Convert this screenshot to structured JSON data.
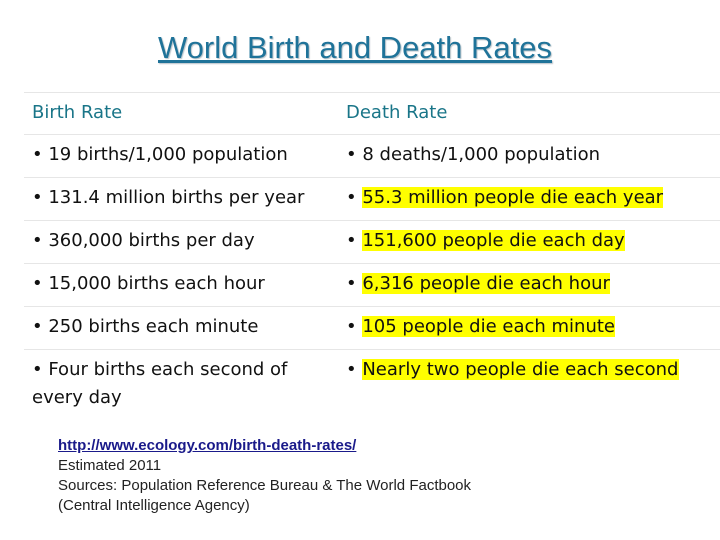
{
  "title": "World Birth and Death Rates",
  "table": {
    "headers": [
      "Birth Rate",
      "Death Rate"
    ],
    "rows": [
      {
        "birth": "• 19 births/1,000 population",
        "death_bullet": "• ",
        "death": "8 deaths/1,000 population",
        "highlight": false
      },
      {
        "birth": "• 131.4 million births per year",
        "death_bullet": "• ",
        "death": "55.3 million people die each year",
        "highlight": true
      },
      {
        "birth": "• 360,000 births per day",
        "death_bullet": "• ",
        "death": "151,600 people die each day",
        "highlight": true
      },
      {
        "birth": "• 15,000 births each hour",
        "death_bullet": "• ",
        "death": "6,316 people die each hour",
        "highlight": true
      },
      {
        "birth": "• 250 births each minute",
        "death_bullet": "• ",
        "death": "105 people die each minute",
        "highlight": true
      },
      {
        "birth": "• Four births each second of every day",
        "death_bullet": "• ",
        "death": "Nearly two people die each second",
        "highlight": true
      }
    ]
  },
  "source": {
    "link": "http://www.ecology.com/birth-death-rates/",
    "line1": "Estimated 2011",
    "line2": "Sources: Population Reference Bureau & The World Factbook",
    "line3": "(Central Intelligence Agency)"
  },
  "colors": {
    "title": "#1f7399",
    "header": "#197588",
    "highlight": "#ffff00"
  }
}
